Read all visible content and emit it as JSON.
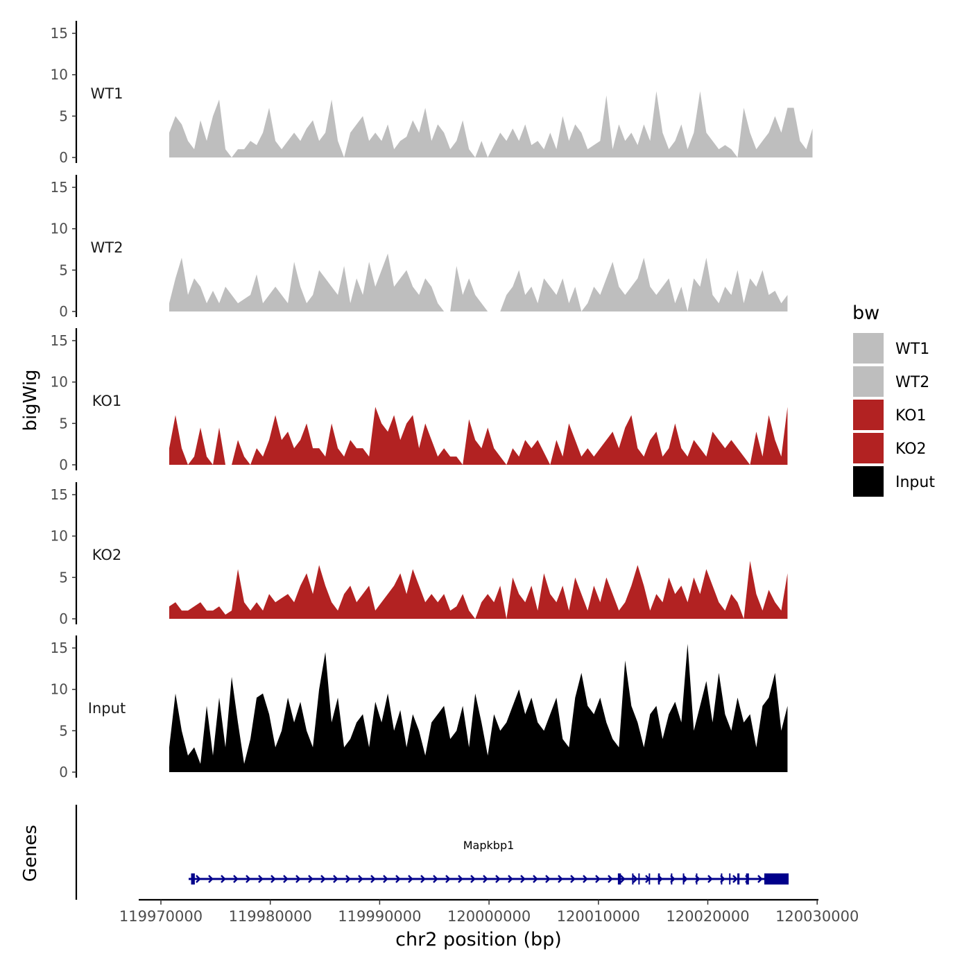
{
  "chart_data": {
    "type": "area",
    "xlabel": "chr2 position (bp)",
    "ylabel": "bigWig",
    "genes_label": "Genes",
    "xlim": [
      119968000,
      120030100
    ],
    "x_ticks": [
      119970000,
      119980000,
      119990000,
      120000000,
      120010000,
      120020000,
      120030000
    ],
    "x_tick_labels": [
      "119970000",
      "119980000",
      "119990000",
      "120000000",
      "120010000",
      "120020000",
      "120030000"
    ],
    "ylim": [
      0,
      16
    ],
    "y_ticks": [
      0,
      5,
      10,
      15
    ],
    "y_tick_labels": [
      "0",
      "5",
      "10",
      "15"
    ],
    "x_start": 119970760,
    "x_step": 571,
    "legend": {
      "title": "bw",
      "position": "right",
      "entries": [
        {
          "label": "WT1",
          "color": "#bebebe"
        },
        {
          "label": "WT2",
          "color": "#bebebe"
        },
        {
          "label": "KO1",
          "color": "#b22222"
        },
        {
          "label": "KO2",
          "color": "#b22222"
        },
        {
          "label": "Input",
          "color": "#000000"
        }
      ]
    },
    "series": [
      {
        "name": "WT1",
        "color": "#bebebe",
        "values": [
          3,
          5,
          4,
          2,
          1,
          4.5,
          2,
          5,
          7,
          1,
          0,
          1,
          1,
          2,
          1.5,
          3,
          6,
          2,
          1,
          2,
          3,
          2,
          3.5,
          4.5,
          2,
          3,
          7,
          2,
          0,
          3,
          4,
          5,
          2,
          3,
          2,
          4,
          1,
          2,
          2.5,
          4.5,
          3,
          6,
          2,
          4,
          3,
          1,
          2,
          4.5,
          1,
          0,
          2,
          0,
          1.5,
          3,
          2,
          3.5,
          2,
          4,
          1.5,
          2,
          1,
          3,
          1,
          5,
          2,
          4,
          3,
          1,
          1.5,
          2,
          7.5,
          1,
          4,
          2,
          3,
          1.5,
          4,
          2,
          8,
          3,
          1,
          2,
          4,
          1,
          3,
          8,
          3,
          2,
          1,
          1.5,
          1,
          0,
          6,
          3,
          1,
          2,
          3,
          5,
          3,
          6,
          6,
          2,
          1,
          3.5
        ]
      },
      {
        "name": "WT2",
        "color": "#bebebe",
        "values": [
          1,
          4,
          6.5,
          2,
          4,
          3,
          1,
          2.5,
          1,
          3,
          2,
          1,
          1.5,
          2,
          4.5,
          1,
          2,
          3,
          2,
          1,
          6,
          3,
          1,
          2,
          5,
          4,
          3,
          2,
          5.5,
          1,
          4,
          2,
          6,
          3,
          5,
          7,
          3,
          4,
          5,
          3,
          2,
          4,
          3,
          1,
          0,
          0,
          5.5,
          2,
          4,
          2,
          1,
          0,
          0,
          0,
          2,
          3,
          5,
          2,
          3,
          1,
          4,
          3,
          2,
          4,
          1,
          3,
          0,
          1,
          3,
          2,
          4,
          6,
          3,
          2,
          3,
          4,
          6.5,
          3,
          2,
          3,
          4,
          1,
          3,
          0,
          4,
          3,
          6.5,
          2,
          1,
          3,
          2,
          5,
          1,
          4,
          3,
          5,
          2,
          2.5,
          1,
          2
        ]
      },
      {
        "name": "KO1",
        "color": "#b22222",
        "values": [
          2,
          6,
          2,
          0,
          1,
          4.5,
          1,
          0,
          4.5,
          0,
          0,
          3,
          1,
          0,
          2,
          1,
          3,
          6,
          3,
          4,
          2,
          3,
          5,
          2,
          2,
          1,
          5,
          2,
          1,
          3,
          2,
          2,
          1,
          7,
          5,
          4,
          6,
          3,
          5,
          6,
          2,
          5,
          3,
          1,
          2,
          1,
          1,
          0,
          5.5,
          3,
          2,
          4.5,
          2,
          1,
          0,
          2,
          1,
          3,
          2,
          3,
          1.5,
          0,
          3,
          1,
          5,
          3,
          1,
          2,
          1,
          2,
          3,
          4,
          2,
          4.5,
          6,
          2,
          1,
          3,
          4,
          1,
          2,
          5,
          2,
          1,
          3,
          2,
          1,
          4,
          3,
          2,
          3,
          2,
          1,
          0,
          4,
          1,
          6,
          3,
          1,
          7
        ]
      },
      {
        "name": "KO2",
        "color": "#b22222",
        "values": [
          1.5,
          2,
          1,
          1,
          1.5,
          2,
          1,
          1,
          1.5,
          0.5,
          1,
          6,
          2,
          1,
          2,
          1,
          3,
          2,
          2.5,
          3,
          2,
          4,
          5.5,
          3,
          6.5,
          4,
          2,
          1,
          3,
          4,
          2,
          3,
          4,
          1,
          2,
          3,
          4,
          5.5,
          3,
          6,
          4,
          2,
          3,
          2,
          3,
          1,
          1.5,
          3,
          1,
          0,
          2,
          3,
          2,
          4,
          0,
          5,
          3,
          2,
          4,
          1,
          5.5,
          3,
          2,
          4,
          1,
          5,
          3,
          1,
          4,
          2,
          5,
          3,
          1,
          2,
          4,
          6.5,
          4,
          1,
          3,
          2,
          5,
          3,
          4,
          2,
          5,
          3,
          6,
          4,
          2,
          1,
          3,
          2,
          0,
          7,
          3,
          1,
          3.5,
          2,
          1,
          5.5
        ]
      },
      {
        "name": "Input",
        "color": "#000000",
        "values": [
          3,
          9.5,
          5,
          2,
          3,
          1,
          8,
          2,
          9,
          3,
          11.5,
          6,
          1,
          4,
          9,
          9.5,
          7,
          3,
          5,
          9,
          6,
          8.5,
          5,
          3,
          10,
          14.5,
          6,
          9,
          3,
          4,
          6,
          7,
          3,
          8.5,
          6,
          9.5,
          5,
          7.5,
          3,
          7,
          5,
          2,
          6,
          7,
          8,
          4,
          5,
          8,
          3,
          9.5,
          6,
          2,
          7,
          5,
          6,
          8,
          10,
          7,
          9,
          6,
          5,
          7,
          9,
          4,
          3,
          9,
          12,
          8,
          7,
          9,
          6,
          4,
          3,
          13.5,
          8,
          6,
          3,
          7,
          8,
          4,
          7,
          8.5,
          6,
          15.5,
          5,
          8,
          11,
          6,
          12,
          7,
          5,
          9,
          6,
          7,
          3,
          8,
          9,
          12,
          5,
          8
        ]
      }
    ]
  },
  "gene": {
    "name": "Mapkbp1",
    "start": 119972536,
    "end": 120027390,
    "strand": "+",
    "color": "#00008b",
    "exons": [
      [
        119972760,
        119973100
      ],
      [
        120011780,
        120012060
      ],
      [
        120013080,
        120013180
      ],
      [
        120013650,
        120013740
      ],
      [
        120014600,
        120014690
      ],
      [
        120015450,
        120015620
      ],
      [
        120016630,
        120016700
      ],
      [
        120017720,
        120017790
      ],
      [
        120018920,
        120018990
      ],
      [
        120021200,
        120021290
      ],
      [
        120021950,
        120022060
      ],
      [
        120022700,
        120022900
      ],
      [
        120023500,
        120023760
      ],
      [
        120025168,
        120027390
      ]
    ]
  }
}
